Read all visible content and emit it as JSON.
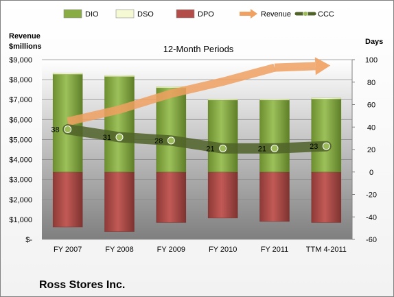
{
  "chart_data": {
    "type": "bar",
    "title": "12-Month Periods",
    "company": "Ross Stores Inc.",
    "categories": [
      "FY 2007",
      "FY 2008",
      "FY 2009",
      "FY 2010",
      "FY 2011",
      "TTM 4-2011"
    ],
    "left_axis": {
      "label_line1": "Revenue",
      "label_line2": "$millions",
      "ticks": [
        "$-",
        "$1,000",
        "$2,000",
        "$3,000",
        "$4,000",
        "$5,000",
        "$6,000",
        "$7,000",
        "$8,000",
        "$9,000"
      ],
      "ylim": [
        0,
        9000
      ]
    },
    "right_axis": {
      "label": "Days",
      "ticks": [
        "-60",
        "-40",
        "-20",
        "0",
        "20",
        "40",
        "60",
        "80",
        "100"
      ],
      "ylim": [
        -60,
        100
      ]
    },
    "series": [
      {
        "name": "DIO",
        "axis": "days",
        "color": "#8aac45",
        "values": [
          87,
          85,
          75,
          64,
          64,
          65
        ]
      },
      {
        "name": "DSO",
        "axis": "days",
        "color": "#f5f9d4",
        "values": [
          1,
          1,
          1,
          1,
          1,
          1
        ]
      },
      {
        "name": "DPO",
        "axis": "days",
        "color": "#b24d4a",
        "values": [
          -49,
          -53,
          -45,
          -41,
          -44,
          -45
        ]
      },
      {
        "name": "Revenue",
        "axis": "revenue",
        "color": "#f0a060",
        "values": [
          5900,
          6500,
          7300,
          7900,
          8600,
          8700
        ]
      },
      {
        "name": "CCC",
        "axis": "days",
        "color": "#4f6228",
        "values": [
          38,
          31,
          28,
          21,
          21,
          23
        ]
      }
    ],
    "data_labels": [
      "38",
      "31",
      "28",
      "21",
      "21",
      "23"
    ],
    "legend_position": "top",
    "grid": true
  }
}
